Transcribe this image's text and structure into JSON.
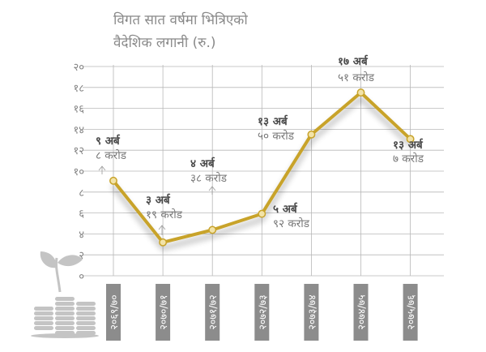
{
  "title_lines": [
    "विगत सात वर्षमा भित्रिएको",
    "वैदेशिक लगानी (रु.)"
  ],
  "colors": {
    "line": "#c8a32a",
    "point_fill": "#f2e3a8",
    "grid": "#b8b8b8",
    "label_bold": "#4a4a4a",
    "label_light": "#777777",
    "tick_text": "#808080",
    "xlabel_bg": "#8c8c8c",
    "xlabel_text": "#ffffff",
    "icon": "#c4c4c4"
  },
  "decoration": {
    "icon": "coin-stack-plant-icon"
  },
  "chart_data": {
    "type": "line",
    "title": "विगत सात वर्षमा भित्रिएको वैदेशिक लगानी (रु.)",
    "ylim": [
      0,
      20
    ],
    "yticks": [
      {
        "value": 0,
        "label": "०"
      },
      {
        "value": 2,
        "label": "२"
      },
      {
        "value": 4,
        "label": "४"
      },
      {
        "value": 6,
        "label": "६"
      },
      {
        "value": 8,
        "label": "८"
      },
      {
        "value": 10,
        "label": "१०"
      },
      {
        "value": 12,
        "label": "१२"
      },
      {
        "value": 14,
        "label": "१४"
      },
      {
        "value": 16,
        "label": "१६"
      },
      {
        "value": 18,
        "label": "१८"
      },
      {
        "value": 20,
        "label": "२०"
      }
    ],
    "grid": true,
    "categories": [
      "२०६९/७०",
      "२०७०/७१",
      "२०७१/७२",
      "२०७२/७३",
      "२०७३/७४",
      "२०७४/७५",
      "२०७५/७६"
    ],
    "values": [
      9.08,
      3.19,
      4.38,
      5.92,
      13.5,
      17.51,
      13.07
    ],
    "data_labels": [
      {
        "line1": "९ अर्ब",
        "line2": "८ करोड"
      },
      {
        "line1": "३ अर्ब",
        "line2": "१९ करोड"
      },
      {
        "line1": "४ अर्ब",
        "line2": "३८ करोड"
      },
      {
        "line1": "५ अर्ब",
        "line2": "९२ करोड"
      },
      {
        "line1": "१३ अर्ब",
        "line2": "५० करोड"
      },
      {
        "line1": "१७ अर्ब",
        "line2": "५१ करोड"
      },
      {
        "line1": "१३ अर्ब",
        "line2": "७ करोड"
      }
    ]
  }
}
